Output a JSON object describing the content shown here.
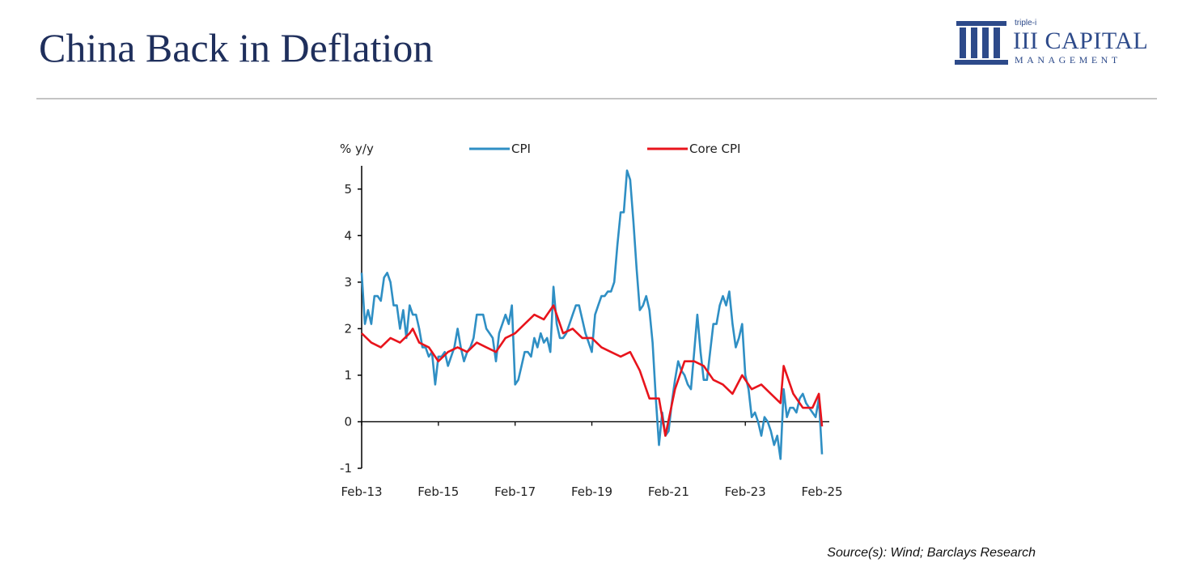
{
  "slide": {
    "title": "China Back in Deflation",
    "source": "Source(s): Wind; Barclays Research"
  },
  "logo": {
    "small_text": "triple-i",
    "name": "III CAPITAL",
    "sub": "MANAGEMENT",
    "color": "#2d4a8a"
  },
  "chart_data": {
    "type": "line",
    "ylabel": "% y/y",
    "ylim": [
      -1,
      5.5
    ],
    "yticks": [
      -1,
      0,
      1,
      2,
      3,
      4,
      5
    ],
    "xlim": [
      "2013-02",
      "2025-03"
    ],
    "xticks": [
      "Feb-13",
      "Feb-15",
      "Feb-17",
      "Feb-19",
      "Feb-21",
      "Feb-23",
      "Feb-25"
    ],
    "legend_position": "top",
    "series": [
      {
        "name": "CPI",
        "color": "#2f8fc4",
        "points": [
          [
            "2013-02",
            3.2
          ],
          [
            "2013-03",
            2.1
          ],
          [
            "2013-04",
            2.4
          ],
          [
            "2013-05",
            2.1
          ],
          [
            "2013-06",
            2.7
          ],
          [
            "2013-07",
            2.7
          ],
          [
            "2013-08",
            2.6
          ],
          [
            "2013-09",
            3.1
          ],
          [
            "2013-10",
            3.2
          ],
          [
            "2013-11",
            3.0
          ],
          [
            "2013-12",
            2.5
          ],
          [
            "2014-01",
            2.5
          ],
          [
            "2014-02",
            2.0
          ],
          [
            "2014-03",
            2.4
          ],
          [
            "2014-04",
            1.8
          ],
          [
            "2014-05",
            2.5
          ],
          [
            "2014-06",
            2.3
          ],
          [
            "2014-07",
            2.3
          ],
          [
            "2014-08",
            2.0
          ],
          [
            "2014-09",
            1.6
          ],
          [
            "2014-10",
            1.6
          ],
          [
            "2014-11",
            1.4
          ],
          [
            "2014-12",
            1.5
          ],
          [
            "2015-01",
            0.8
          ],
          [
            "2015-02",
            1.4
          ],
          [
            "2015-03",
            1.4
          ],
          [
            "2015-04",
            1.5
          ],
          [
            "2015-05",
            1.2
          ],
          [
            "2015-06",
            1.4
          ],
          [
            "2015-07",
            1.6
          ],
          [
            "2015-08",
            2.0
          ],
          [
            "2015-09",
            1.6
          ],
          [
            "2015-10",
            1.3
          ],
          [
            "2015-11",
            1.5
          ],
          [
            "2015-12",
            1.6
          ],
          [
            "2016-01",
            1.8
          ],
          [
            "2016-02",
            2.3
          ],
          [
            "2016-03",
            2.3
          ],
          [
            "2016-04",
            2.3
          ],
          [
            "2016-05",
            2.0
          ],
          [
            "2016-06",
            1.9
          ],
          [
            "2016-07",
            1.8
          ],
          [
            "2016-08",
            1.3
          ],
          [
            "2016-09",
            1.9
          ],
          [
            "2016-10",
            2.1
          ],
          [
            "2016-11",
            2.3
          ],
          [
            "2016-12",
            2.1
          ],
          [
            "2017-01",
            2.5
          ],
          [
            "2017-02",
            0.8
          ],
          [
            "2017-03",
            0.9
          ],
          [
            "2017-04",
            1.2
          ],
          [
            "2017-05",
            1.5
          ],
          [
            "2017-06",
            1.5
          ],
          [
            "2017-07",
            1.4
          ],
          [
            "2017-08",
            1.8
          ],
          [
            "2017-09",
            1.6
          ],
          [
            "2017-10",
            1.9
          ],
          [
            "2017-11",
            1.7
          ],
          [
            "2017-12",
            1.8
          ],
          [
            "2018-01",
            1.5
          ],
          [
            "2018-02",
            2.9
          ],
          [
            "2018-03",
            2.1
          ],
          [
            "2018-04",
            1.8
          ],
          [
            "2018-05",
            1.8
          ],
          [
            "2018-06",
            1.9
          ],
          [
            "2018-07",
            2.1
          ],
          [
            "2018-08",
            2.3
          ],
          [
            "2018-09",
            2.5
          ],
          [
            "2018-10",
            2.5
          ],
          [
            "2018-11",
            2.2
          ],
          [
            "2018-12",
            1.9
          ],
          [
            "2019-01",
            1.7
          ],
          [
            "2019-02",
            1.5
          ],
          [
            "2019-03",
            2.3
          ],
          [
            "2019-04",
            2.5
          ],
          [
            "2019-05",
            2.7
          ],
          [
            "2019-06",
            2.7
          ],
          [
            "2019-07",
            2.8
          ],
          [
            "2019-08",
            2.8
          ],
          [
            "2019-09",
            3.0
          ],
          [
            "2019-10",
            3.8
          ],
          [
            "2019-11",
            4.5
          ],
          [
            "2019-12",
            4.5
          ],
          [
            "2020-01",
            5.4
          ],
          [
            "2020-02",
            5.2
          ],
          [
            "2020-03",
            4.3
          ],
          [
            "2020-04",
            3.3
          ],
          [
            "2020-05",
            2.4
          ],
          [
            "2020-06",
            2.5
          ],
          [
            "2020-07",
            2.7
          ],
          [
            "2020-08",
            2.4
          ],
          [
            "2020-09",
            1.7
          ],
          [
            "2020-10",
            0.5
          ],
          [
            "2020-11",
            -0.5
          ],
          [
            "2020-12",
            0.2
          ],
          [
            "2021-01",
            -0.3
          ],
          [
            "2021-02",
            -0.2
          ],
          [
            "2021-03",
            0.4
          ],
          [
            "2021-04",
            0.9
          ],
          [
            "2021-05",
            1.3
          ],
          [
            "2021-06",
            1.1
          ],
          [
            "2021-07",
            1.0
          ],
          [
            "2021-08",
            0.8
          ],
          [
            "2021-09",
            0.7
          ],
          [
            "2021-10",
            1.5
          ],
          [
            "2021-11",
            2.3
          ],
          [
            "2021-12",
            1.5
          ],
          [
            "2022-01",
            0.9
          ],
          [
            "2022-02",
            0.9
          ],
          [
            "2022-03",
            1.5
          ],
          [
            "2022-04",
            2.1
          ],
          [
            "2022-05",
            2.1
          ],
          [
            "2022-06",
            2.5
          ],
          [
            "2022-07",
            2.7
          ],
          [
            "2022-08",
            2.5
          ],
          [
            "2022-09",
            2.8
          ],
          [
            "2022-10",
            2.1
          ],
          [
            "2022-11",
            1.6
          ],
          [
            "2022-12",
            1.8
          ],
          [
            "2023-01",
            2.1
          ],
          [
            "2023-02",
            1.0
          ],
          [
            "2023-03",
            0.7
          ],
          [
            "2023-04",
            0.1
          ],
          [
            "2023-05",
            0.2
          ],
          [
            "2023-06",
            0.0
          ],
          [
            "2023-07",
            -0.3
          ],
          [
            "2023-08",
            0.1
          ],
          [
            "2023-09",
            0.0
          ],
          [
            "2023-10",
            -0.2
          ],
          [
            "2023-11",
            -0.5
          ],
          [
            "2023-12",
            -0.3
          ],
          [
            "2024-01",
            -0.8
          ],
          [
            "2024-02",
            0.7
          ],
          [
            "2024-03",
            0.1
          ],
          [
            "2024-04",
            0.3
          ],
          [
            "2024-05",
            0.3
          ],
          [
            "2024-06",
            0.2
          ],
          [
            "2024-07",
            0.5
          ],
          [
            "2024-08",
            0.6
          ],
          [
            "2024-09",
            0.4
          ],
          [
            "2024-10",
            0.3
          ],
          [
            "2024-11",
            0.2
          ],
          [
            "2024-12",
            0.1
          ],
          [
            "2025-01",
            0.5
          ],
          [
            "2025-02",
            -0.7
          ]
        ]
      },
      {
        "name": "Core CPI",
        "color": "#e8141c",
        "points": [
          [
            "2013-02",
            1.9
          ],
          [
            "2013-05",
            1.7
          ],
          [
            "2013-08",
            1.6
          ],
          [
            "2013-11",
            1.8
          ],
          [
            "2014-02",
            1.7
          ],
          [
            "2014-05",
            1.9
          ],
          [
            "2014-06",
            2.0
          ],
          [
            "2014-08",
            1.7
          ],
          [
            "2014-11",
            1.6
          ],
          [
            "2015-02",
            1.3
          ],
          [
            "2015-05",
            1.5
          ],
          [
            "2015-08",
            1.6
          ],
          [
            "2015-11",
            1.5
          ],
          [
            "2016-02",
            1.7
          ],
          [
            "2016-05",
            1.6
          ],
          [
            "2016-08",
            1.5
          ],
          [
            "2016-11",
            1.8
          ],
          [
            "2017-02",
            1.9
          ],
          [
            "2017-05",
            2.1
          ],
          [
            "2017-08",
            2.3
          ],
          [
            "2017-11",
            2.2
          ],
          [
            "2018-02",
            2.5
          ],
          [
            "2018-05",
            1.9
          ],
          [
            "2018-08",
            2.0
          ],
          [
            "2018-11",
            1.8
          ],
          [
            "2019-02",
            1.8
          ],
          [
            "2019-05",
            1.6
          ],
          [
            "2019-08",
            1.5
          ],
          [
            "2019-11",
            1.4
          ],
          [
            "2020-02",
            1.5
          ],
          [
            "2020-05",
            1.1
          ],
          [
            "2020-08",
            0.5
          ],
          [
            "2020-11",
            0.5
          ],
          [
            "2021-01",
            -0.3
          ],
          [
            "2021-04",
            0.7
          ],
          [
            "2021-07",
            1.3
          ],
          [
            "2021-10",
            1.3
          ],
          [
            "2022-01",
            1.2
          ],
          [
            "2022-04",
            0.9
          ],
          [
            "2022-07",
            0.8
          ],
          [
            "2022-10",
            0.6
          ],
          [
            "2023-01",
            1.0
          ],
          [
            "2023-04",
            0.7
          ],
          [
            "2023-07",
            0.8
          ],
          [
            "2023-10",
            0.6
          ],
          [
            "2024-01",
            0.4
          ],
          [
            "2024-02",
            1.2
          ],
          [
            "2024-05",
            0.6
          ],
          [
            "2024-08",
            0.3
          ],
          [
            "2024-11",
            0.3
          ],
          [
            "2025-01",
            0.6
          ],
          [
            "2025-02",
            -0.1
          ]
        ]
      }
    ]
  }
}
